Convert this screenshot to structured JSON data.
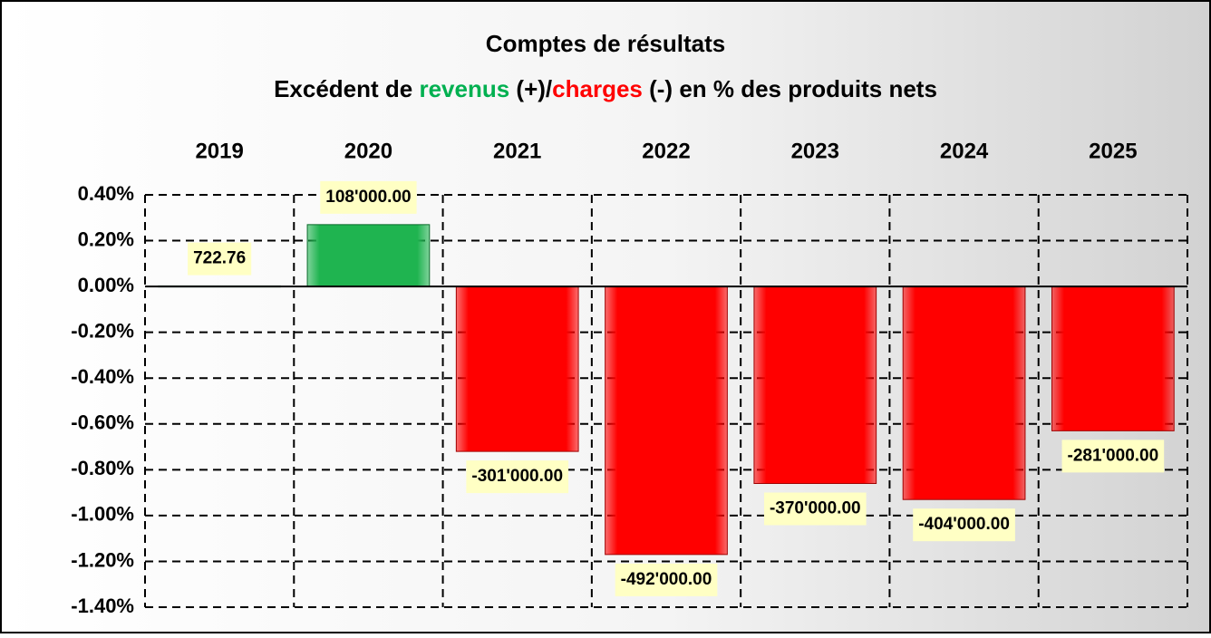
{
  "chart_data": {
    "type": "bar",
    "title": "Comptes de résultats",
    "subtitle": [
      {
        "text": "Excédent de ",
        "color": "#000000"
      },
      {
        "text": "revenus",
        "color": "#00b050"
      },
      {
        "text": " (+)/",
        "color": "#000000"
      },
      {
        "text": "charges",
        "color": "#ff0000"
      },
      {
        "text": " (-) en % des produits nets",
        "color": "#000000"
      }
    ],
    "categories": [
      "2019",
      "2020",
      "2021",
      "2022",
      "2023",
      "2024",
      "2025"
    ],
    "values": [
      0.002,
      0.27,
      -0.72,
      -1.17,
      -0.86,
      -0.93,
      -0.63
    ],
    "data_labels": [
      "722.76",
      "108'000.00",
      "-301'000.00",
      "-492'000.00",
      "-370'000.00",
      "-404'000.00",
      "-281'000.00"
    ],
    "positive_color": "#1fb450",
    "negative_color": "#ff0000",
    "ylim": [
      -1.4,
      0.4
    ],
    "yticks": [
      {
        "value": 0.4,
        "label": "0.40%"
      },
      {
        "value": 0.2,
        "label": "0.20%"
      },
      {
        "value": 0,
        "label": "0.00%"
      },
      {
        "value": -0.2,
        "label": "-0.20%"
      },
      {
        "value": -0.4,
        "label": "-0.40%"
      },
      {
        "value": -0.6,
        "label": "-0.60%"
      },
      {
        "value": -0.8,
        "label": "-0.80%"
      },
      {
        "value": -1.0,
        "label": "-1.00%"
      },
      {
        "value": -1.2,
        "label": "-1.20%"
      },
      {
        "value": -1.4,
        "label": "-1.40%"
      }
    ],
    "grid": true
  }
}
